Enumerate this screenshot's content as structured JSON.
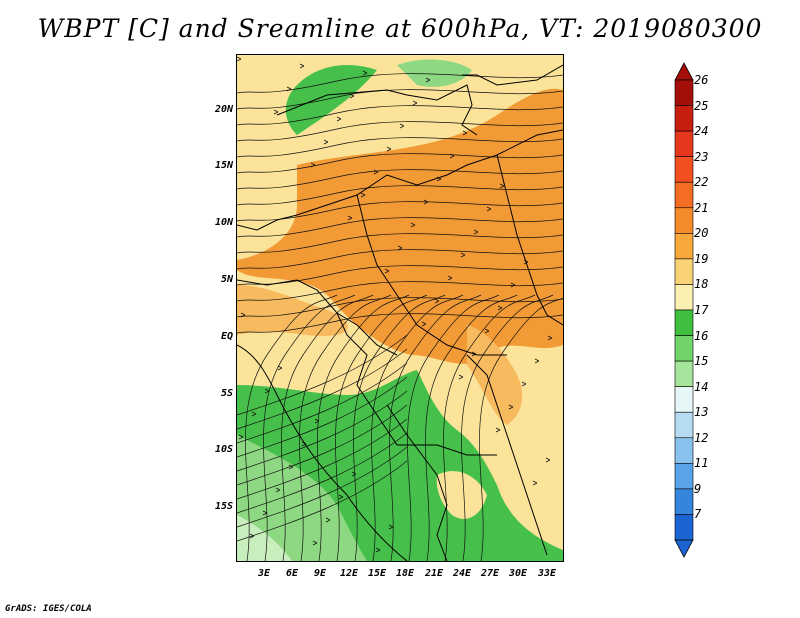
{
  "title": "WBPT [C] and Sreamline at 600hPa, VT: 2019080300",
  "credit": "GrADS: IGES/COLA",
  "lat_labels": [
    "20N",
    "15N",
    "10N",
    "5N",
    "EQ",
    "5S",
    "10S",
    "15S"
  ],
  "lon_labels": [
    "3E",
    "6E",
    "9E",
    "12E",
    "15E",
    "18E",
    "21E",
    "24E",
    "27E",
    "30E",
    "33E"
  ],
  "colorbar": {
    "labels": [
      "26",
      "25",
      "24",
      "23",
      "22",
      "21",
      "20",
      "19",
      "18",
      "17",
      "16",
      "15",
      "14",
      "13",
      "12",
      "11",
      "9",
      "7"
    ],
    "colors": [
      "#a50f0a",
      "#c81e0f",
      "#e6361c",
      "#f4501f",
      "#f46d22",
      "#f48b2a",
      "#f7a83a",
      "#fad377",
      "#fbf0b0",
      "#3fbf40",
      "#70d46a",
      "#a6e69c",
      "#e7f6f6",
      "#b6dcf3",
      "#89c2ed",
      "#5aa3e6",
      "#3585dd",
      "#1c64d2"
    ],
    "top_arrow_color": "#a50f0a",
    "bottom_arrow_color": "#1c64d2"
  },
  "field_colors": {
    "orange": "#f29a35",
    "light_orange": "#f7ba5e",
    "yellow": "#fbe49a",
    "green": "#46c04a",
    "light_green": "#8fd883",
    "pale_green": "#c9eebe"
  }
}
